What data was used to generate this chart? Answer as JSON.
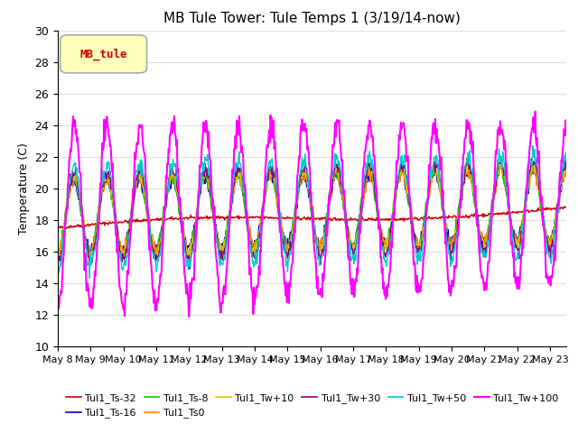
{
  "title": "MB Tule Tower: Tule Temps 1 (3/19/14-now)",
  "ylabel": "Temperature (C)",
  "ylim": [
    10,
    30
  ],
  "x_ticklabels": [
    "May 8",
    "May 9",
    "May 10",
    "May 11",
    "May 12",
    "May 13",
    "May 14",
    "May 15",
    "May 16",
    "May 17",
    "May 18",
    "May 19",
    "May 20",
    "May 21",
    "May 22",
    "May 23"
  ],
  "legend_label": "MB_tule",
  "series_labels": [
    "Tul1_Ts-32",
    "Tul1_Ts-16",
    "Tul1_Ts-8",
    "Tul1_Ts0",
    "Tul1_Tw+10",
    "Tul1_Tw+30",
    "Tul1_Tw+50",
    "Tul1_Tw+100"
  ],
  "series_colors": [
    "#cc0000",
    "#0000cc",
    "#00cc00",
    "#ff8800",
    "#cccc00",
    "#880088",
    "#00cccc",
    "#ff00ff"
  ],
  "grid_color": "#dddddd",
  "title_fontsize": 11,
  "tick_fontsize": 8,
  "legend_fontsize": 8
}
